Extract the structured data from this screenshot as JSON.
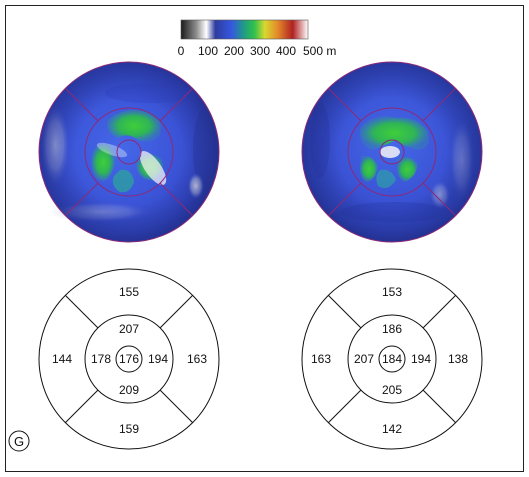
{
  "colorbar": {
    "ticks": [
      "0",
      "100",
      "200",
      "300",
      "400",
      "500 m"
    ],
    "gradient": [
      "#1a1a1a",
      "#8c8c8c",
      "#ffffff",
      "#2e3c9e",
      "#3558e0",
      "#1e9f80",
      "#33c24a",
      "#d8d830",
      "#e48a2a",
      "#b02222",
      "#ffffff"
    ]
  },
  "maps": [
    {
      "name": "left-thickness-map"
    },
    {
      "name": "right-thickness-map"
    }
  ],
  "etdrs": [
    {
      "center": "176",
      "inner": {
        "top": "207",
        "left": "178",
        "right": "194",
        "bottom": "209"
      },
      "outer": {
        "top": "155",
        "left": "144",
        "right": "163",
        "bottom": "159"
      }
    },
    {
      "center": "184",
      "inner": {
        "top": "186",
        "left": "207",
        "right": "194",
        "bottom": "205"
      },
      "outer": {
        "top": "153",
        "left": "163",
        "right": "138",
        "bottom": "142"
      }
    }
  ],
  "panel_label": "G"
}
